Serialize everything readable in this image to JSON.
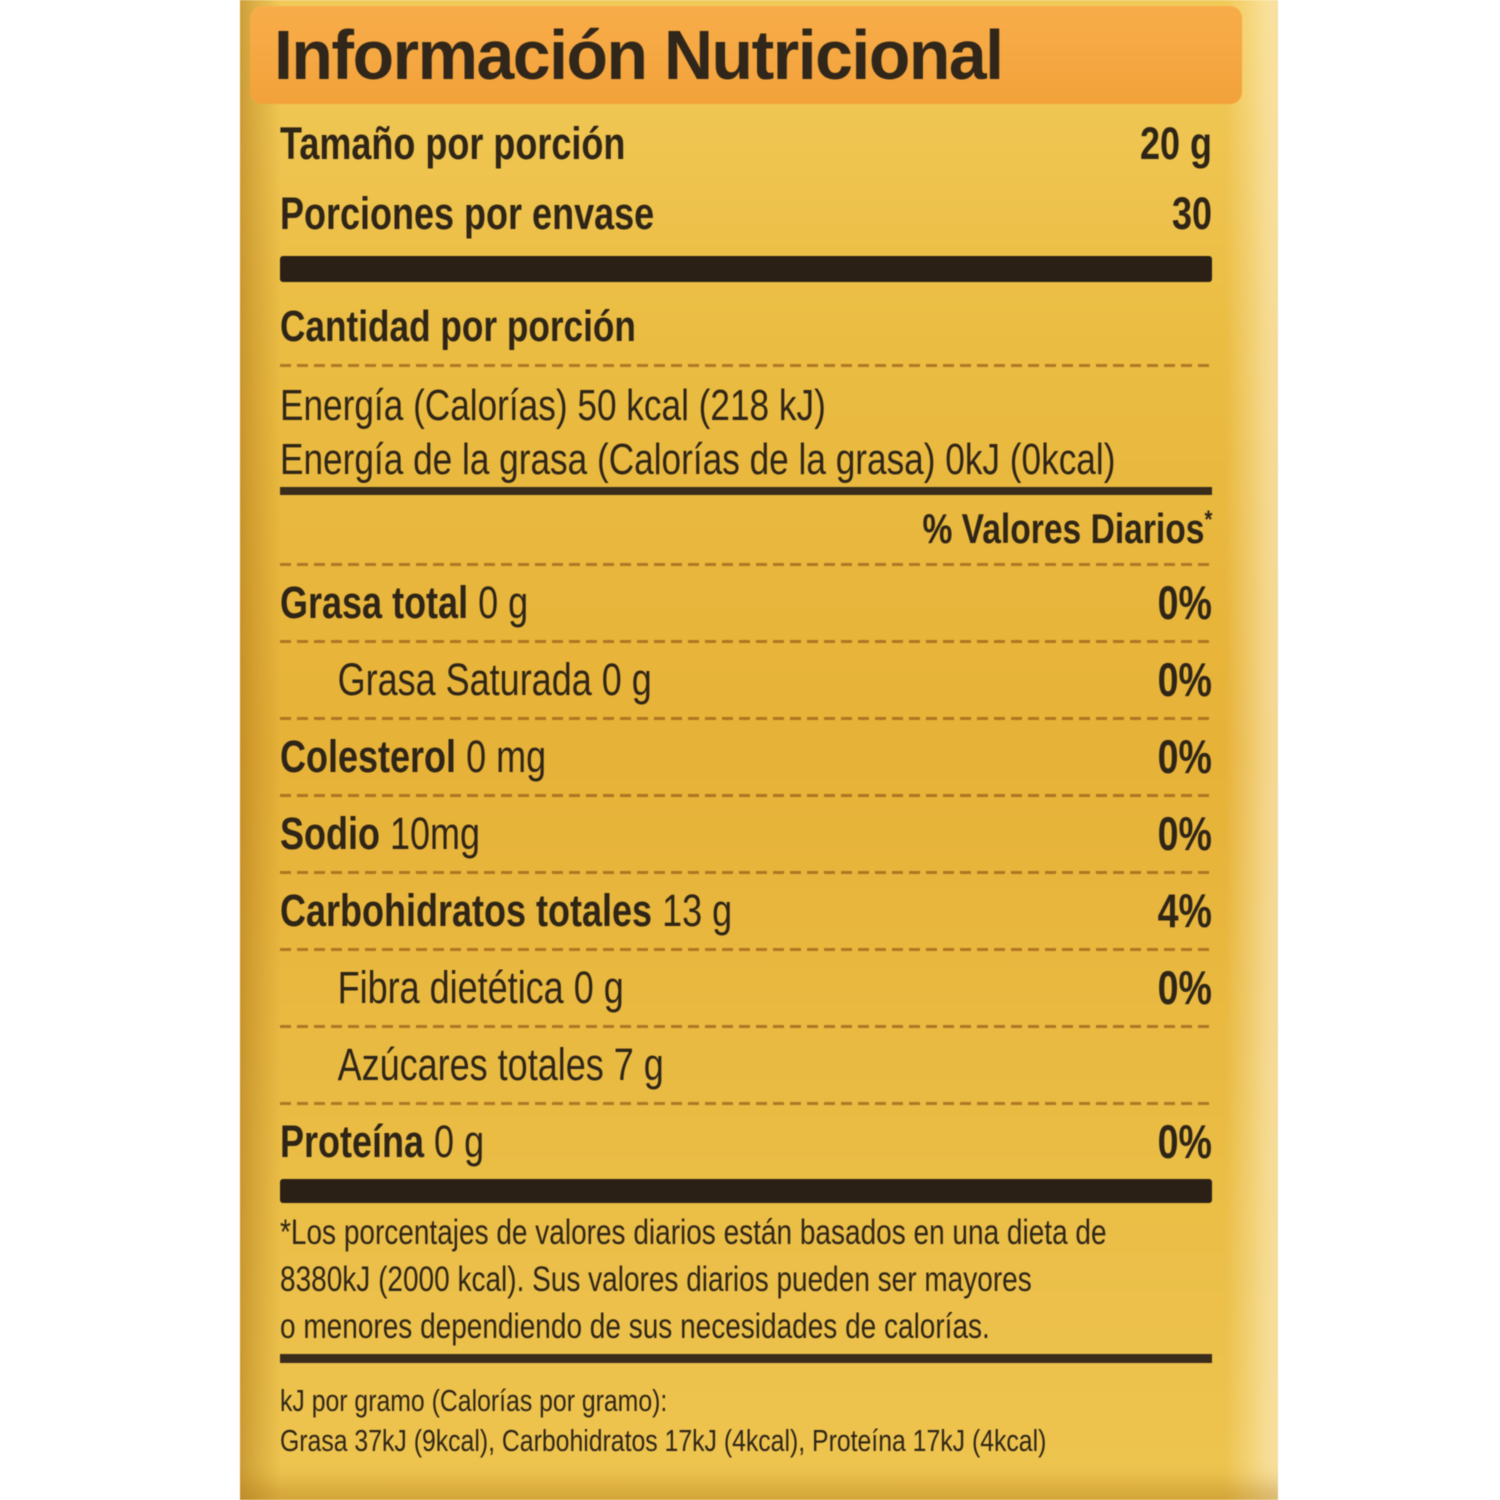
{
  "label": {
    "title": "Información Nutricional",
    "serving": [
      {
        "label": "Tamaño por porción",
        "value": "20 g"
      },
      {
        "label": "Porciones por envase",
        "value": "30"
      }
    ],
    "amount_per_serving": "Cantidad por porción",
    "energy": [
      "Energía (Calorías)  50 kcal (218 kJ)",
      "Energía de la grasa (Calorías de la grasa) 0kJ (0kcal)"
    ],
    "daily_values_header": "% Valores Diarios",
    "daily_values_sup": "*",
    "nutrients": [
      {
        "name": "Grasa total",
        "amount": "0 g",
        "dv": "0%"
      },
      {
        "name": "Grasa Saturada",
        "amount": "0 g",
        "dv": "0%"
      },
      {
        "name": "Colesterol",
        "amount": "0 mg",
        "dv": "0%"
      },
      {
        "name": "Sodio",
        "amount": "10mg",
        "dv": "0%"
      },
      {
        "name": "Carbohidratos totales",
        "amount": "13 g",
        "dv": "4%"
      },
      {
        "name": "Fibra dietética",
        "amount": "0 g",
        "dv": "0%"
      },
      {
        "name": "Azúcares totales",
        "amount": "7 g",
        "dv": ""
      },
      {
        "name": "Proteína",
        "amount": "0 g",
        "dv": "0%"
      }
    ],
    "footnote": [
      "*Los porcentajes de valores diarios están basados en una dieta de",
      "8380kJ (2000 kcal). Sus valores diarios pueden ser mayores",
      "o menores dependiendo de sus necesidades de calorías."
    ],
    "kj_note": [
      "kJ por gramo (Calorías por gramo):",
      "Grasa 37kJ (9kcal), Carbohidratos 17kJ (4kcal), Proteína 17kJ (4kcal)"
    ],
    "colors": {
      "label_bg": "#e8ba44",
      "header_band": "#f2a544",
      "text": "#2f2517",
      "bar": "#2a2015",
      "dash": "#8a4a12",
      "page_bg": "#ffffff"
    }
  }
}
